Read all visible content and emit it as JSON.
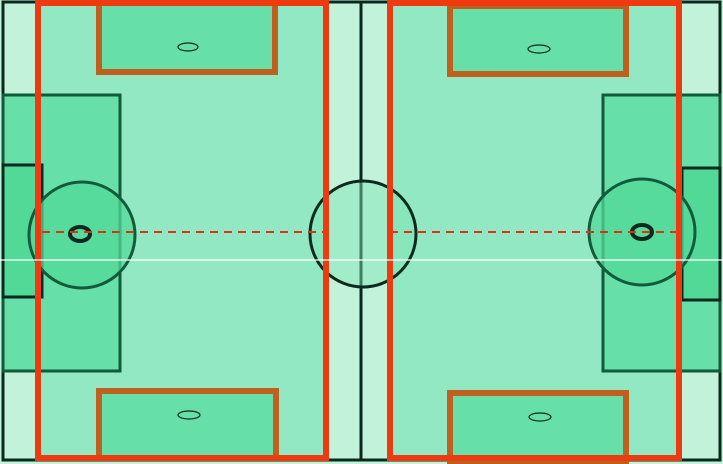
{
  "diagram": {
    "type": "field-layout",
    "colors": {
      "pitch_light": "#c3f2db",
      "pitch_mid": "#92e8c2",
      "penalty_area": "#66e0a8",
      "goal_area": "#52d998",
      "line_dark": "#0b2a1e",
      "line_green": "#125a3a",
      "subfield_outline": "#ee3a10",
      "small_goal_outline": "#c0601e",
      "midline_dash": "#e0301a",
      "horizon_line": "#ffffff"
    },
    "subfields": [
      {
        "name": "left-subfield",
        "dashed_midline": true,
        "small_goals": [
          "top",
          "bottom"
        ]
      },
      {
        "name": "right-subfield",
        "dashed_midline": true,
        "small_goals": [
          "top",
          "bottom"
        ]
      }
    ],
    "full_field": {
      "center_circle": true,
      "halfway_line": true,
      "penalty_areas": [
        "left",
        "right"
      ],
      "goal_areas": [
        "left",
        "right"
      ],
      "penalty_spots": [
        "left",
        "right"
      ]
    }
  }
}
